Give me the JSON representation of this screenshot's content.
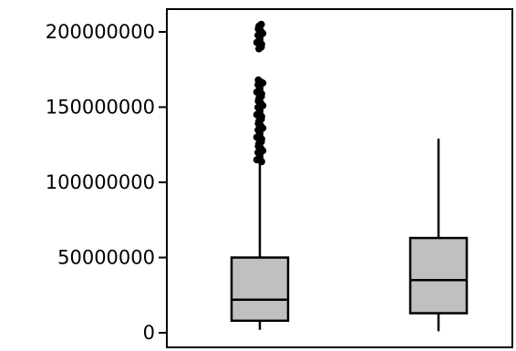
{
  "chart_data": {
    "type": "box",
    "title": "",
    "xlabel": "",
    "ylabel": "",
    "ylim": [
      0,
      210000000
    ],
    "yticks": [
      0,
      50000000,
      100000000,
      150000000,
      200000000
    ],
    "ytick_labels": [
      "0",
      "50000000",
      "100000000",
      "150000000",
      "200000000"
    ],
    "grid": false,
    "legend": "none",
    "box_fill_color": "#c0c0c0",
    "line_color": "#000000",
    "boxes": [
      {
        "whisker_low": 2000000,
        "q1": 8000000,
        "median": 22000000,
        "q3": 50000000,
        "whisker_high": 113000000,
        "outliers": [
          115000000,
          118000000,
          121000000,
          124000000,
          127000000,
          130000000,
          133000000,
          136000000,
          139000000,
          142000000,
          145000000,
          148000000,
          151000000,
          154000000,
          157000000,
          160000000,
          163000000,
          166000000,
          168000000,
          190000000,
          193000000,
          196000000,
          199000000,
          202000000,
          205000000
        ]
      },
      {
        "whisker_low": 1000000,
        "q1": 13000000,
        "median": 35000000,
        "q3": 63000000,
        "whisker_high": 129000000,
        "outliers": []
      }
    ]
  }
}
